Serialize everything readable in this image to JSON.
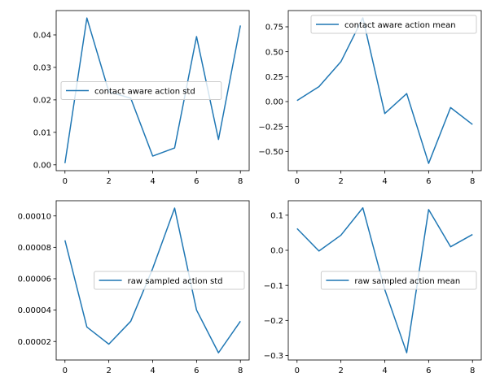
{
  "chart_data": [
    {
      "type": "line",
      "x": [
        0,
        1,
        2,
        3,
        4,
        5,
        6,
        7,
        8
      ],
      "series": [
        {
          "name": "contact aware action std",
          "values": [
            0.0005,
            0.0452,
            0.0225,
            0.0205,
            0.0027,
            0.0052,
            0.0395,
            0.0078,
            0.0429
          ]
        }
      ],
      "xticks": [
        "0",
        "2",
        "4",
        "6",
        "8"
      ],
      "yticks": [
        "0.00",
        "0.01",
        "0.02",
        "0.03",
        "0.04"
      ],
      "ytick_values": [
        0,
        0.01,
        0.02,
        0.03,
        0.04
      ],
      "xlim": [
        -0.4,
        8.4
      ],
      "ylim": [
        -0.0018,
        0.0475
      ],
      "legend_loc": "center left",
      "grid": false
    },
    {
      "type": "line",
      "x": [
        0,
        1,
        2,
        3,
        4,
        5,
        6,
        7,
        8
      ],
      "series": [
        {
          "name": "contact aware action mean",
          "values": [
            0.01,
            0.15,
            0.4,
            0.84,
            -0.12,
            0.08,
            -0.62,
            -0.06,
            -0.23
          ]
        }
      ],
      "xticks": [
        "0",
        "2",
        "4",
        "6",
        "8"
      ],
      "yticks": [
        "0.75",
        "0.50",
        "0.25",
        "0.00",
        "−0.25",
        "−0.50"
      ],
      "ytick_values": [
        0.75,
        0.5,
        0.25,
        0,
        -0.25,
        -0.5
      ],
      "xlim": [
        -0.4,
        8.4
      ],
      "ylim": [
        -0.693,
        0.913
      ],
      "legend_loc": "upper right",
      "grid": false
    },
    {
      "type": "line",
      "x": [
        0,
        1,
        2,
        3,
        4,
        5,
        6,
        7,
        8
      ],
      "series": [
        {
          "name": "raw sampled action std",
          "values": [
            8.45e-05,
            2.92e-05,
            1.83e-05,
            3.29e-05,
            6.65e-05,
            0.000105,
            4e-05,
            1.28e-05,
            3.29e-05
          ]
        }
      ],
      "xticks": [
        "0",
        "2",
        "4",
        "6",
        "8"
      ],
      "yticks": [
        "0.00010",
        "0.00008",
        "0.00006",
        "0.00004",
        "0.00002"
      ],
      "ytick_values": [
        0.0001,
        8e-05,
        6e-05,
        4e-05,
        2e-05
      ],
      "xlim": [
        -0.4,
        8.4
      ],
      "ylim": [
        8.2e-06,
        0.0001097
      ],
      "legend_loc": "center right",
      "grid": false
    },
    {
      "type": "line",
      "x": [
        0,
        1,
        2,
        3,
        4,
        5,
        6,
        7,
        8
      ],
      "series": [
        {
          "name": "raw sampled action mean",
          "values": [
            0.062,
            -0.002,
            0.043,
            0.121,
            -0.112,
            -0.292,
            0.116,
            0.01,
            0.045
          ]
        }
      ],
      "xticks": [
        "0",
        "2",
        "4",
        "6",
        "8"
      ],
      "yticks": [
        "0.1",
        "0.0",
        "−0.1",
        "−0.2",
        "−0.3"
      ],
      "ytick_values": [
        0.1,
        0,
        -0.1,
        -0.2,
        -0.3
      ],
      "xlim": [
        -0.4,
        8.4
      ],
      "ylim": [
        -0.3127,
        0.1413
      ],
      "legend_loc": "center right",
      "grid": false
    }
  ],
  "colors": {
    "line": "#1f77b4",
    "axes": "#000000",
    "legend_border": "#cccccc",
    "background": "#ffffff"
  }
}
